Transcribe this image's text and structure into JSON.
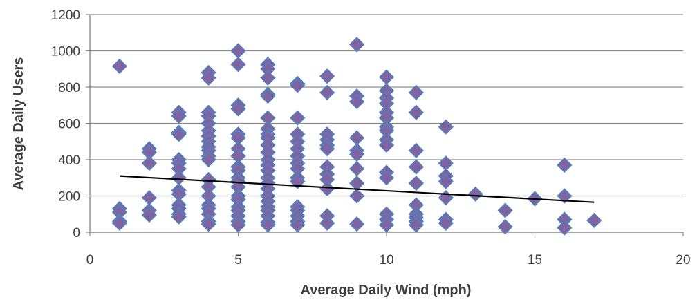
{
  "chart_data": {
    "type": "scatter",
    "title": "",
    "xlabel": "Average Daily Wind (mph)",
    "ylabel": "Average Daily Users",
    "xlim": [
      0,
      20
    ],
    "ylim": [
      0,
      1200
    ],
    "x_ticks": [
      0,
      5,
      10,
      15,
      20
    ],
    "y_ticks": [
      0,
      200,
      400,
      600,
      800,
      1000,
      1200
    ],
    "grid": "horizontal",
    "legend": "none",
    "colors": {
      "marker_fill": "#8064A2",
      "marker_edge": "#4F81BD",
      "trendline": "#000000",
      "grid": "#8C8C8C",
      "axis_text": "#404040"
    },
    "series": [
      {
        "marker": "diamond",
        "points": [
          [
            1,
            915
          ],
          [
            1,
            130
          ],
          [
            1,
            110
          ],
          [
            1,
            60
          ],
          [
            1,
            50
          ],
          [
            2,
            460
          ],
          [
            2,
            440
          ],
          [
            2,
            380
          ],
          [
            2,
            190
          ],
          [
            2,
            120
          ],
          [
            2,
            95
          ],
          [
            3,
            660
          ],
          [
            3,
            640
          ],
          [
            3,
            550
          ],
          [
            3,
            540
          ],
          [
            3,
            400
          ],
          [
            3,
            380
          ],
          [
            3,
            350
          ],
          [
            3,
            300
          ],
          [
            3,
            230
          ],
          [
            3,
            210
          ],
          [
            3,
            150
          ],
          [
            3,
            130
          ],
          [
            3,
            100
          ],
          [
            3,
            85
          ],
          [
            4,
            880
          ],
          [
            4,
            850
          ],
          [
            4,
            660
          ],
          [
            4,
            640
          ],
          [
            4,
            600
          ],
          [
            4,
            560
          ],
          [
            4,
            530
          ],
          [
            4,
            500
          ],
          [
            4,
            470
          ],
          [
            4,
            450
          ],
          [
            4,
            420
          ],
          [
            4,
            400
          ],
          [
            4,
            290
          ],
          [
            4,
            250
          ],
          [
            4,
            200
          ],
          [
            4,
            150
          ],
          [
            4,
            130
          ],
          [
            4,
            100
          ],
          [
            4,
            60
          ],
          [
            4,
            45
          ],
          [
            5,
            1000
          ],
          [
            5,
            925
          ],
          [
            5,
            700
          ],
          [
            5,
            680
          ],
          [
            5,
            540
          ],
          [
            5,
            520
          ],
          [
            5,
            460
          ],
          [
            5,
            420
          ],
          [
            5,
            360
          ],
          [
            5,
            340
          ],
          [
            5,
            300
          ],
          [
            5,
            280
          ],
          [
            5,
            250
          ],
          [
            5,
            200
          ],
          [
            5,
            180
          ],
          [
            5,
            140
          ],
          [
            5,
            120
          ],
          [
            5,
            90
          ],
          [
            5,
            60
          ],
          [
            5,
            40
          ],
          [
            6,
            925
          ],
          [
            6,
            900
          ],
          [
            6,
            850
          ],
          [
            6,
            760
          ],
          [
            6,
            750
          ],
          [
            6,
            630
          ],
          [
            6,
            570
          ],
          [
            6,
            540
          ],
          [
            6,
            520
          ],
          [
            6,
            480
          ],
          [
            6,
            440
          ],
          [
            6,
            400
          ],
          [
            6,
            370
          ],
          [
            6,
            340
          ],
          [
            6,
            300
          ],
          [
            6,
            270
          ],
          [
            6,
            240
          ],
          [
            6,
            200
          ],
          [
            6,
            170
          ],
          [
            6,
            140
          ],
          [
            6,
            120
          ],
          [
            6,
            90
          ],
          [
            6,
            55
          ],
          [
            6,
            40
          ],
          [
            7,
            820
          ],
          [
            7,
            810
          ],
          [
            7,
            630
          ],
          [
            7,
            540
          ],
          [
            7,
            500
          ],
          [
            7,
            460
          ],
          [
            7,
            420
          ],
          [
            7,
            380
          ],
          [
            7,
            350
          ],
          [
            7,
            300
          ],
          [
            7,
            280
          ],
          [
            7,
            140
          ],
          [
            7,
            120
          ],
          [
            7,
            90
          ],
          [
            7,
            60
          ],
          [
            7,
            40
          ],
          [
            8,
            860
          ],
          [
            8,
            770
          ],
          [
            8,
            540
          ],
          [
            8,
            510
          ],
          [
            8,
            480
          ],
          [
            8,
            460
          ],
          [
            8,
            360
          ],
          [
            8,
            320
          ],
          [
            8,
            290
          ],
          [
            8,
            240
          ],
          [
            8,
            90
          ],
          [
            8,
            50
          ],
          [
            9,
            1035
          ],
          [
            9,
            750
          ],
          [
            9,
            720
          ],
          [
            9,
            520
          ],
          [
            9,
            450
          ],
          [
            9,
            430
          ],
          [
            9,
            350
          ],
          [
            9,
            270
          ],
          [
            9,
            200
          ],
          [
            9,
            45
          ],
          [
            10,
            855
          ],
          [
            10,
            780
          ],
          [
            10,
            740
          ],
          [
            10,
            710
          ],
          [
            10,
            660
          ],
          [
            10,
            630
          ],
          [
            10,
            580
          ],
          [
            10,
            560
          ],
          [
            10,
            510
          ],
          [
            10,
            480
          ],
          [
            10,
            330
          ],
          [
            10,
            300
          ],
          [
            10,
            100
          ],
          [
            10,
            70
          ],
          [
            10,
            40
          ],
          [
            11,
            770
          ],
          [
            11,
            660
          ],
          [
            11,
            450
          ],
          [
            11,
            360
          ],
          [
            11,
            270
          ],
          [
            11,
            150
          ],
          [
            11,
            100
          ],
          [
            11,
            80
          ],
          [
            11,
            60
          ],
          [
            11,
            40
          ],
          [
            12,
            580
          ],
          [
            12,
            380
          ],
          [
            12,
            310
          ],
          [
            12,
            280
          ],
          [
            12,
            190
          ],
          [
            12,
            70
          ],
          [
            12,
            50
          ],
          [
            13,
            210
          ],
          [
            14,
            120
          ],
          [
            14,
            30
          ],
          [
            15,
            185
          ],
          [
            16,
            370
          ],
          [
            16,
            200
          ],
          [
            16,
            70
          ],
          [
            16,
            25
          ],
          [
            17,
            65
          ]
        ]
      }
    ],
    "trendline": {
      "type": "linear",
      "x": [
        1,
        17
      ],
      "y": [
        310,
        165
      ]
    }
  }
}
